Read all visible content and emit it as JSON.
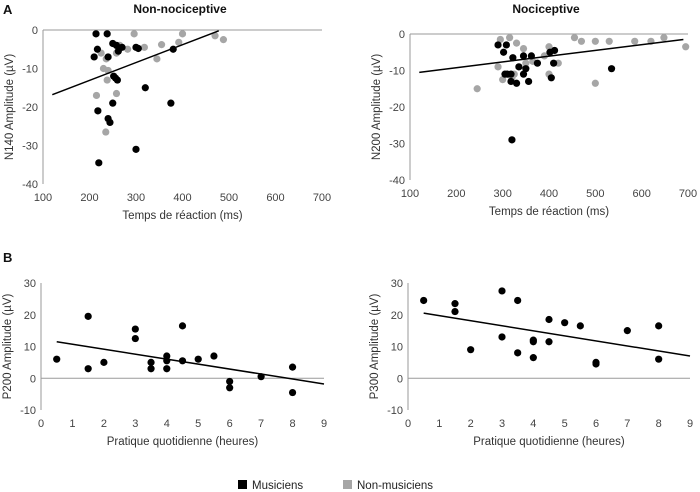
{
  "panel_labels": [
    "A",
    "B"
  ],
  "legend": [
    {
      "label": "Musiciens",
      "color": "#000000"
    },
    {
      "label": "Non-musiciens",
      "color": "#a6a6a6"
    }
  ],
  "chart_data": [
    {
      "type": "scatter",
      "title": "Non-nociceptive",
      "xlabel": "Temps de réaction (ms)",
      "ylabel": "N140 Amplitude (µV)",
      "xlim": [
        100,
        700
      ],
      "ylim": [
        -40,
        0
      ],
      "xticks": [
        100,
        200,
        300,
        400,
        500,
        600,
        700
      ],
      "yticks": [
        -40,
        -30,
        -20,
        -10,
        0
      ],
      "trendline": [
        [
          120,
          -16.8
        ],
        [
          478,
          -0.2
        ]
      ],
      "series": [
        {
          "name": "Musiciens",
          "color": "#000000",
          "points": [
            [
              214,
              -1
            ],
            [
              238,
              -1
            ],
            [
              210,
              -7
            ],
            [
              217,
              -5
            ],
            [
              240,
              -7
            ],
            [
              250,
              -3.5
            ],
            [
              258,
              -4
            ],
            [
              262,
              -5.5
            ],
            [
              270,
              -4.5
            ],
            [
              252,
              -12
            ],
            [
              256,
              -12.5
            ],
            [
              260,
              -13
            ],
            [
              250,
              -19
            ],
            [
              240,
              -23
            ],
            [
              244,
              -24
            ],
            [
              218,
              -21
            ],
            [
              220,
              -34.5
            ],
            [
              300,
              -31
            ],
            [
              320,
              -15
            ],
            [
              375,
              -19
            ],
            [
              380,
              -5
            ],
            [
              305,
              -4.8
            ],
            [
              300,
              -4.5
            ]
          ]
        },
        {
          "name": "Non-musiciens",
          "color": "#a6a6a6",
          "points": [
            [
              225,
              -6
            ],
            [
              236,
              -7.5
            ],
            [
              258,
              -6
            ],
            [
              265,
              -4
            ],
            [
              282,
              -5
            ],
            [
              296,
              -1
            ],
            [
              318,
              -4.5
            ],
            [
              345,
              -7.5
            ],
            [
              355,
              -3.8
            ],
            [
              392,
              -3.2
            ],
            [
              400,
              -1
            ],
            [
              470,
              -1.5
            ],
            [
              488,
              -2.5
            ],
            [
              230,
              -10
            ],
            [
              240,
              -10.5
            ],
            [
              238,
              -13
            ],
            [
              215,
              -17
            ],
            [
              258,
              -16.5
            ],
            [
              235,
              -26.5
            ]
          ]
        }
      ]
    },
    {
      "type": "scatter",
      "title": "Nociceptive",
      "xlabel": "Temps de réaction (ms)",
      "ylabel": "N200 Amplitude (µV)",
      "xlim": [
        100,
        700
      ],
      "ylim": [
        -40,
        0
      ],
      "xticks": [
        100,
        200,
        300,
        400,
        500,
        600,
        700
      ],
      "yticks": [
        -40,
        -30,
        -20,
        -10,
        0
      ],
      "trendline": [
        [
          120,
          -10.5
        ],
        [
          690,
          -1.5
        ]
      ],
      "series": [
        {
          "name": "Musiciens",
          "color": "#000000",
          "points": [
            [
              290,
              -3
            ],
            [
              308,
              -3
            ],
            [
              302,
              -5
            ],
            [
              322,
              -6.5
            ],
            [
              345,
              -6
            ],
            [
              362,
              -6
            ],
            [
              375,
              -8
            ],
            [
              402,
              -5
            ],
            [
              412,
              -4.5
            ],
            [
              335,
              -9
            ],
            [
              350,
              -9.5
            ],
            [
              345,
              -11
            ],
            [
              318,
              -11
            ],
            [
              318,
              -13
            ],
            [
              330,
              -13.5
            ],
            [
              356,
              -13
            ],
            [
              405,
              -12
            ],
            [
              410,
              -8
            ],
            [
              305,
              -11
            ],
            [
              310,
              -11
            ],
            [
              535,
              -9.5
            ],
            [
              320,
              -29
            ]
          ]
        },
        {
          "name": "Non-musiciens",
          "color": "#a6a6a6",
          "points": [
            [
              295,
              -1.5
            ],
            [
              315,
              -1
            ],
            [
              330,
              -2.5
            ],
            [
              345,
              -4
            ],
            [
              365,
              -7.5
            ],
            [
              390,
              -6
            ],
            [
              400,
              -3.5
            ],
            [
              455,
              -1
            ],
            [
              470,
              -2
            ],
            [
              500,
              -2
            ],
            [
              530,
              -2
            ],
            [
              585,
              -2
            ],
            [
              620,
              -2
            ],
            [
              648,
              -1
            ],
            [
              695,
              -3.5
            ],
            [
              320,
              -12
            ],
            [
              325,
              -11
            ],
            [
              350,
              -8
            ],
            [
              290,
              -9
            ],
            [
              300,
              -12.5
            ],
            [
              400,
              -11
            ],
            [
              420,
              -8
            ],
            [
              500,
              -13.5
            ],
            [
              245,
              -15
            ]
          ]
        }
      ]
    },
    {
      "type": "scatter",
      "title": "",
      "xlabel": "Pratique quotidienne (heures)",
      "ylabel": "P200 Amplitude (µV)",
      "xlim": [
        0,
        9
      ],
      "ylim": [
        -10,
        30
      ],
      "xticks": [
        0,
        1,
        2,
        3,
        4,
        5,
        6,
        7,
        8,
        9
      ],
      "yticks": [
        -10,
        0,
        10,
        20,
        30
      ],
      "trendline": [
        [
          0.5,
          11.5
        ],
        [
          9,
          -1.8
        ]
      ],
      "series": [
        {
          "name": "Musiciens",
          "color": "#000000",
          "points": [
            [
              0.5,
              6
            ],
            [
              1.5,
              19.5
            ],
            [
              1.5,
              3
            ],
            [
              2,
              5
            ],
            [
              3,
              15.5
            ],
            [
              3,
              12.5
            ],
            [
              3.5,
              5
            ],
            [
              3.5,
              3
            ],
            [
              4,
              7
            ],
            [
              4,
              5.5
            ],
            [
              4,
              3
            ],
            [
              4.5,
              16.5
            ],
            [
              4.5,
              5.5
            ],
            [
              5,
              6
            ],
            [
              5.5,
              7
            ],
            [
              6,
              -1
            ],
            [
              6,
              -3
            ],
            [
              7,
              0.5
            ],
            [
              8,
              3.5
            ],
            [
              8,
              -4.5
            ]
          ]
        }
      ]
    },
    {
      "type": "scatter",
      "title": "",
      "xlabel": "Pratique quotidienne (heures)",
      "ylabel": "P300 Amplitude (µV)",
      "xlim": [
        0,
        9
      ],
      "ylim": [
        -10,
        30
      ],
      "xticks": [
        0,
        1,
        2,
        3,
        4,
        5,
        6,
        7,
        8,
        9
      ],
      "yticks": [
        -10,
        0,
        10,
        20,
        30
      ],
      "trendline": [
        [
          0.5,
          20.5
        ],
        [
          9,
          7
        ]
      ],
      "series": [
        {
          "name": "Musiciens",
          "color": "#000000",
          "points": [
            [
              0.5,
              24.5
            ],
            [
              1.5,
              23.5
            ],
            [
              1.5,
              21
            ],
            [
              2,
              9
            ],
            [
              3,
              27.5
            ],
            [
              3,
              13
            ],
            [
              3.5,
              24.5
            ],
            [
              3.5,
              8
            ],
            [
              4,
              12
            ],
            [
              4,
              11.5
            ],
            [
              4,
              6.5
            ],
            [
              4.5,
              18.5
            ],
            [
              4.5,
              11.5
            ],
            [
              5,
              17.5
            ],
            [
              5.5,
              16.5
            ],
            [
              6,
              5
            ],
            [
              6,
              4.5
            ],
            [
              7,
              15
            ],
            [
              8,
              16.5
            ],
            [
              8,
              6
            ]
          ]
        }
      ]
    }
  ]
}
